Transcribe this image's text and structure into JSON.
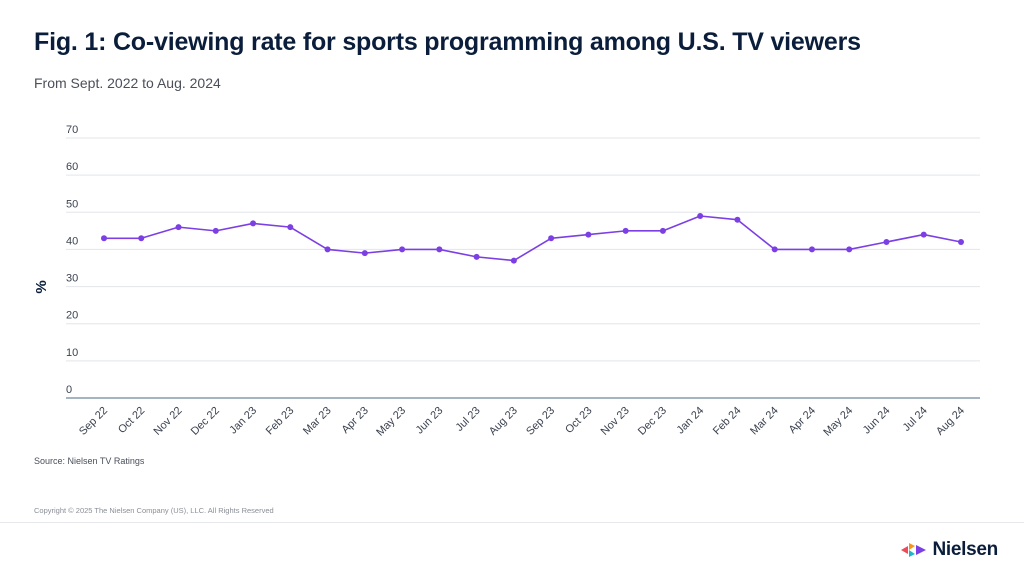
{
  "header": {
    "title": "Fig. 1: Co-viewing rate for sports programming among U.S. TV viewers",
    "subtitle": "From Sept. 2022 to Aug. 2024"
  },
  "footer": {
    "source": "Source: Nielsen TV Ratings",
    "copyright": "Copyright © 2025 The Nielsen Company (US), LLC. All Rights Reserved",
    "brand_name": "Nielsen"
  },
  "colors": {
    "line": "#7b3fe4",
    "grid": "#e3e5ea",
    "axis": "#4a6a86",
    "text": "#3b4250",
    "logo_red": "#ef4a5a",
    "logo_orange": "#f7941d",
    "logo_teal": "#20b6c8",
    "logo_purple": "#7b3fe4"
  },
  "chart_data": {
    "type": "line",
    "title": "Fig. 1: Co-viewing rate for sports programming among U.S. TV viewers",
    "subtitle": "From Sept. 2022 to Aug. 2024",
    "xlabel": "",
    "ylabel": "%",
    "ylim": [
      0,
      70
    ],
    "yticks": [
      0,
      10,
      20,
      30,
      40,
      50,
      60,
      70
    ],
    "grid": true,
    "categories": [
      "Sep 22",
      "Oct 22",
      "Nov 22",
      "Dec 22",
      "Jan 23",
      "Feb 23",
      "Mar 23",
      "Apr 23",
      "May 23",
      "Jun 23",
      "Jul 23",
      "Aug 23",
      "Sep 23",
      "Oct 23",
      "Nov 23",
      "Dec 23",
      "Jan 24",
      "Feb 24",
      "Mar 24",
      "Apr 24",
      "May 24",
      "Jun 24",
      "Jul 24",
      "Aug 24"
    ],
    "series": [
      {
        "values": [
          43,
          43,
          46,
          45,
          47,
          46,
          40,
          39,
          40,
          40,
          38,
          37,
          43,
          44,
          45,
          45,
          49,
          48,
          40,
          40,
          40,
          42,
          44,
          42
        ]
      }
    ]
  }
}
